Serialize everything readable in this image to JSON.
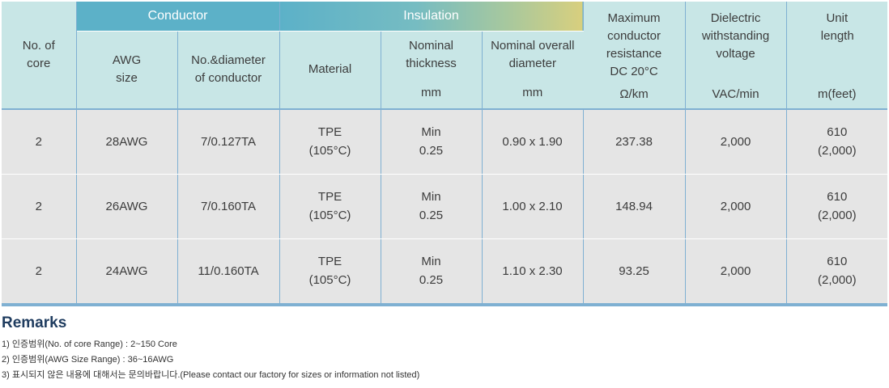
{
  "header": {
    "no_of_core": "No. of core",
    "conductor_group": "Conductor",
    "insulation_group": "Insulation",
    "awg_size": "AWG size",
    "no_diameter": "No.&diameter of conductor",
    "material": "Material",
    "nominal_thickness": "Nominal thickness",
    "nominal_thickness_unit": "mm",
    "nominal_od": "Nominal overall diameter",
    "nominal_od_unit": "mm",
    "max_resistance": "Maximum conductor resistance DC 20°C",
    "max_resistance_unit": "Ω/km",
    "dielectric": "Dielectric withstanding voltage",
    "dielectric_unit": "VAC/min",
    "unit_length": "Unit length",
    "unit_length_unit": "m(feet)"
  },
  "rows": [
    {
      "core": "2",
      "awg": "28AWG",
      "conductor": "7/0.127TA",
      "material": "TPE",
      "material_temp": "(105°C)",
      "thickness_label": "Min",
      "thickness": "0.25",
      "od": "0.90 x 1.90",
      "resistance": "237.38",
      "voltage": "2,000",
      "length": "610",
      "length_feet": "(2,000)"
    },
    {
      "core": "2",
      "awg": "26AWG",
      "conductor": "7/0.160TA",
      "material": "TPE",
      "material_temp": "(105°C)",
      "thickness_label": "Min",
      "thickness": "0.25",
      "od": "1.00 x 2.10",
      "resistance": "148.94",
      "voltage": "2,000",
      "length": "610",
      "length_feet": "(2,000)"
    },
    {
      "core": "2",
      "awg": "24AWG",
      "conductor": "11/0.160TA",
      "material": "TPE",
      "material_temp": "(105°C)",
      "thickness_label": "Min",
      "thickness": "0.25",
      "od": "1.10 x 2.30",
      "resistance": "93.25",
      "voltage": "2,000",
      "length": "610",
      "length_feet": "(2,000)"
    }
  ],
  "remarks": {
    "title": "Remarks",
    "items": [
      "1) 인증범위(No. of core Range) : 2~150 Core",
      "2) 인증범위(AWG Size Range) : 36~16AWG",
      "3) 표시되지 않은 내용에 대해서는 문의바랍니다.(Please contact our factory for sizes or information not listed)"
    ]
  },
  "colors": {
    "header_bg": "#c8e6e6",
    "group_bg": "#5cb1c8",
    "insulation_gradient_end": "#d8cf7e",
    "row_bg": "#e5e5e5",
    "divider": "#7fb0d2",
    "remarks_title": "#1f3c5f"
  }
}
